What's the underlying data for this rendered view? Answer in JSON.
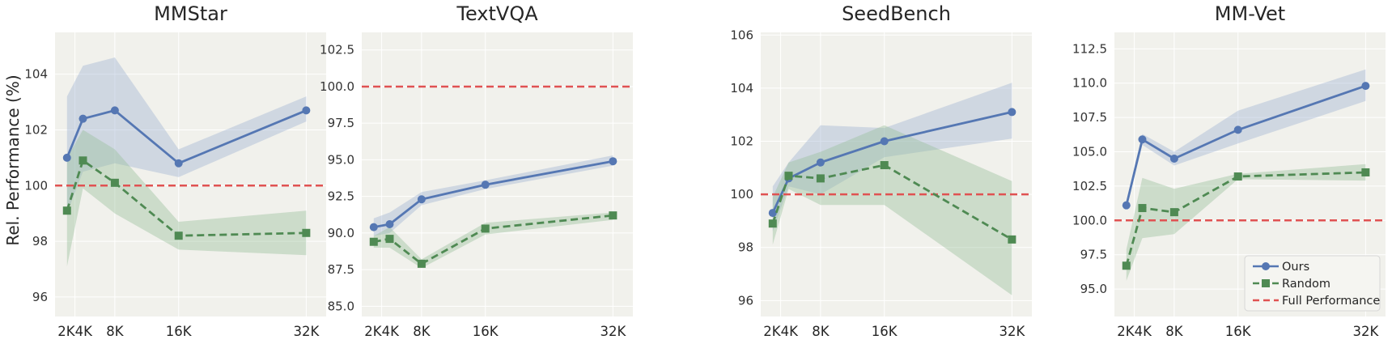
{
  "colors": {
    "ours": "#5577b3",
    "random": "#4f8a53",
    "full": "#e05252",
    "ours_band": "#9db2d2",
    "random_band": "#97be98",
    "panel_bg": "#f1f1ec",
    "grid": "#ffffff"
  },
  "figure": {
    "ylabel": "Rel. Performance (%)"
  },
  "legend": {
    "ours": "Ours",
    "random": "Random",
    "full": "Full Performance"
  },
  "chart_data": [
    {
      "type": "line",
      "title": "MMStar",
      "x": [
        2,
        4,
        8,
        16,
        32
      ],
      "xticks": [
        {
          "value": 3,
          "label": "2K4K"
        },
        {
          "value": 8,
          "label": "8K"
        },
        {
          "value": 16,
          "label": "16K"
        },
        {
          "value": 32,
          "label": "32K"
        }
      ],
      "xlim": [
        0.5,
        34.5
      ],
      "ylim": [
        95.3,
        105.5
      ],
      "yticks": [
        96,
        98,
        100,
        102,
        104
      ],
      "ytick_labels": [
        "96",
        "98",
        "100",
        "102",
        "104"
      ],
      "baseline": 100,
      "series": [
        {
          "name": "Ours",
          "values": [
            101.0,
            102.4,
            102.7,
            100.8,
            102.7
          ],
          "lower": [
            99.0,
            100.5,
            100.8,
            100.3,
            102.3
          ],
          "upper": [
            103.2,
            104.3,
            104.6,
            101.3,
            103.2
          ]
        },
        {
          "name": "Random",
          "values": [
            99.1,
            100.9,
            100.1,
            98.2,
            98.3
          ],
          "lower": [
            97.1,
            99.9,
            99.0,
            97.7,
            97.5
          ],
          "upper": [
            101.0,
            102.0,
            101.3,
            98.7,
            99.1
          ]
        }
      ]
    },
    {
      "type": "line",
      "title": "TextVQA",
      "x": [
        2,
        4,
        8,
        16,
        32
      ],
      "xticks": [
        {
          "value": 3,
          "label": "2K4K"
        },
        {
          "value": 8,
          "label": "8K"
        },
        {
          "value": 16,
          "label": "16K"
        },
        {
          "value": 32,
          "label": "32K"
        }
      ],
      "xlim": [
        0.5,
        34.5
      ],
      "ylim": [
        84.3,
        103.7
      ],
      "yticks": [
        85.0,
        87.5,
        90.0,
        92.5,
        95.0,
        97.5,
        100.0,
        102.5
      ],
      "ytick_labels": [
        "85.0",
        "87.5",
        "90.0",
        "92.5",
        "95.0",
        "97.5",
        "100.0",
        "102.5"
      ],
      "baseline": 100,
      "series": [
        {
          "name": "Ours",
          "values": [
            90.4,
            90.6,
            92.3,
            93.3,
            94.9
          ],
          "lower": [
            89.8,
            90.0,
            91.9,
            93.0,
            94.6
          ],
          "upper": [
            91.0,
            91.4,
            92.8,
            93.6,
            95.3
          ]
        },
        {
          "name": "Random",
          "values": [
            89.4,
            89.6,
            87.9,
            90.3,
            91.2
          ],
          "lower": [
            89.0,
            89.0,
            87.6,
            89.9,
            90.9
          ],
          "upper": [
            89.8,
            90.4,
            88.2,
            90.7,
            91.4
          ]
        }
      ]
    },
    {
      "type": "line",
      "title": "SeedBench",
      "x": [
        2,
        4,
        8,
        16,
        32
      ],
      "xticks": [
        {
          "value": 3,
          "label": "2K4K"
        },
        {
          "value": 8,
          "label": "8K"
        },
        {
          "value": 16,
          "label": "16K"
        },
        {
          "value": 32,
          "label": "32K"
        }
      ],
      "xlim": [
        0.5,
        34.5
      ],
      "ylim": [
        95.4,
        106.1
      ],
      "yticks": [
        96,
        98,
        100,
        102,
        104,
        106
      ],
      "ytick_labels": [
        "96",
        "98",
        "100",
        "102",
        "104",
        "106"
      ],
      "baseline": 100,
      "series": [
        {
          "name": "Ours",
          "values": [
            99.3,
            100.6,
            101.2,
            102.0,
            103.1
          ],
          "lower": [
            98.6,
            100.3,
            100.0,
            101.4,
            102.1
          ],
          "upper": [
            100.3,
            101.2,
            102.6,
            102.5,
            104.2
          ]
        },
        {
          "name": "Random",
          "values": [
            98.9,
            100.7,
            100.6,
            101.1,
            98.3
          ],
          "lower": [
            98.1,
            100.2,
            99.6,
            99.6,
            96.2
          ],
          "upper": [
            99.9,
            101.2,
            101.6,
            102.6,
            100.5
          ]
        }
      ]
    },
    {
      "type": "line",
      "title": "MM-Vet",
      "x": [
        2,
        4,
        8,
        16,
        32
      ],
      "xticks": [
        {
          "value": 3,
          "label": "2K4K"
        },
        {
          "value": 8,
          "label": "8K"
        },
        {
          "value": 16,
          "label": "16K"
        },
        {
          "value": 32,
          "label": "32K"
        }
      ],
      "xlim": [
        0.5,
        34.5
      ],
      "ylim": [
        93.0,
        113.7
      ],
      "yticks": [
        95.0,
        97.5,
        100.0,
        102.5,
        105.0,
        107.5,
        110.0,
        112.5
      ],
      "ytick_labels": [
        "95.0",
        "97.5",
        "100.0",
        "102.5",
        "105.0",
        "107.5",
        "110.0",
        "112.5"
      ],
      "baseline": 100,
      "series": [
        {
          "name": "Ours",
          "values": [
            101.1,
            105.9,
            104.5,
            106.6,
            109.8
          ],
          "lower": [
            100.8,
            105.5,
            104.0,
            105.6,
            108.7
          ],
          "upper": [
            101.4,
            106.3,
            105.0,
            108.0,
            111.0
          ]
        },
        {
          "name": "Random",
          "values": [
            96.7,
            100.9,
            100.6,
            103.2,
            103.5
          ],
          "lower": [
            95.6,
            98.7,
            99.0,
            103.0,
            102.9
          ],
          "upper": [
            97.9,
            103.1,
            102.3,
            103.4,
            104.1
          ]
        }
      ]
    }
  ]
}
